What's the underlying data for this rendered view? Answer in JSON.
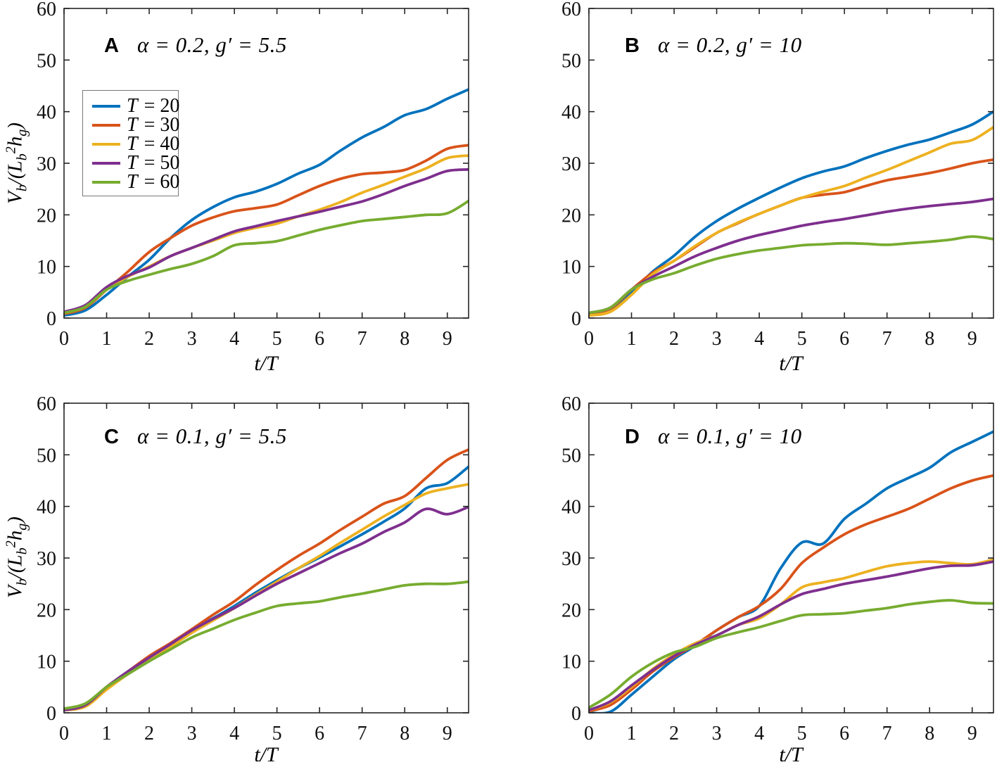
{
  "xlabel": "t/T",
  "ylabel_parts": {
    "v": "V",
    "v_sub": "b",
    "mid": "/(",
    "l": "L",
    "l_sub": "b",
    "l_sup": "2",
    "h": "h",
    "h_sub": "g",
    "close": ")"
  },
  "axis_color": "#262626",
  "chart_data": [
    {
      "type": "line",
      "panel_label": "A",
      "title": "α = 0.2, g′ = 5.5",
      "xlabel": "t/T",
      "ylabel": "V_b/(L_b^2 h_g)",
      "xlim": [
        0,
        9.5
      ],
      "ylim": [
        0,
        60
      ],
      "xticks": [
        0,
        1,
        2,
        3,
        4,
        5,
        6,
        7,
        8,
        9
      ],
      "yticks": [
        0,
        10,
        20,
        30,
        40,
        50,
        60
      ],
      "grid": false,
      "legend": true,
      "legend_position": "upper-left",
      "x": [
        0,
        0.5,
        1,
        1.5,
        2,
        2.5,
        3,
        3.5,
        4,
        4.5,
        5,
        5.5,
        6,
        6.5,
        7,
        7.5,
        8,
        8.5,
        9,
        9.5
      ],
      "series": [
        {
          "name": "T = 20",
          "color": "#0072BD",
          "values": [
            0.5,
            1.5,
            4.5,
            8,
            11.3,
            15.5,
            19,
            21.5,
            23.4,
            24.5,
            26,
            28,
            29.7,
            32.5,
            35,
            37,
            39.3,
            40.5,
            42.5,
            44.3
          ]
        },
        {
          "name": "T = 30",
          "color": "#D95319",
          "values": [
            0.8,
            2,
            5.5,
            9,
            12.8,
            15.5,
            17.9,
            19.5,
            20.7,
            21.3,
            22,
            23.8,
            25.6,
            27,
            27.9,
            28.2,
            28.7,
            30.5,
            32.8,
            33.5
          ]
        },
        {
          "name": "T = 40",
          "color": "#EDB120",
          "values": [
            1,
            2.2,
            5.5,
            8,
            10,
            12,
            13.6,
            15,
            16.5,
            17.5,
            18.3,
            19.7,
            21,
            22.5,
            24.3,
            25.8,
            27.4,
            29,
            31,
            31.5
          ]
        },
        {
          "name": "T = 50",
          "color": "#7E2F8E",
          "values": [
            1.2,
            2.5,
            6,
            8.2,
            9.8,
            12,
            13.6,
            15.2,
            16.8,
            17.8,
            18.8,
            19.7,
            20.6,
            21.6,
            22.6,
            24,
            25.6,
            27,
            28.5,
            28.8
          ]
        },
        {
          "name": "T = 60",
          "color": "#77AC30",
          "values": [
            1,
            2.2,
            5.5,
            7.2,
            8.4,
            9.5,
            10.5,
            12,
            14.1,
            14.5,
            14.9,
            16,
            17.1,
            18,
            18.8,
            19.2,
            19.6,
            20,
            20.3,
            22.7
          ]
        }
      ]
    },
    {
      "type": "line",
      "panel_label": "B",
      "title": "α = 0.2, g′ = 10",
      "xlabel": "t/T",
      "ylabel": "V_b/(L_b^2 h_g)",
      "xlim": [
        0,
        9.5
      ],
      "ylim": [
        0,
        60
      ],
      "xticks": [
        0,
        1,
        2,
        3,
        4,
        5,
        6,
        7,
        8,
        9
      ],
      "yticks": [
        0,
        10,
        20,
        30,
        40,
        50,
        60
      ],
      "grid": false,
      "legend": false,
      "x": [
        0,
        0.5,
        1,
        1.5,
        2,
        2.5,
        3,
        3.5,
        4,
        4.5,
        5,
        5.5,
        6,
        6.5,
        7,
        7.5,
        8,
        8.5,
        9,
        9.5
      ],
      "series": [
        {
          "name": "T = 20",
          "color": "#0072BD",
          "values": [
            1,
            1.8,
            5,
            9,
            12.1,
            15.8,
            18.8,
            21.2,
            23.3,
            25.3,
            27.1,
            28.4,
            29.4,
            31,
            32.4,
            33.6,
            34.6,
            36,
            37.5,
            40
          ]
        },
        {
          "name": "T = 30",
          "color": "#D95319",
          "values": [
            1,
            1.8,
            5.5,
            8.8,
            11.1,
            13.8,
            16.5,
            18.4,
            20.2,
            21.8,
            23.3,
            23.9,
            24.4,
            25.6,
            26.7,
            27.4,
            28.1,
            29,
            30,
            30.7
          ]
        },
        {
          "name": "T = 40",
          "color": "#EDB120",
          "values": [
            0.5,
            1.2,
            4.5,
            8.5,
            11.1,
            14,
            16.5,
            18.5,
            20.2,
            21.8,
            23.3,
            24.5,
            25.6,
            27.2,
            28.7,
            30.4,
            32.1,
            33.8,
            34.5,
            37
          ]
        },
        {
          "name": "T = 50",
          "color": "#7E2F8E",
          "values": [
            1,
            2,
            5.5,
            8,
            10,
            12,
            13.6,
            15,
            16.1,
            17,
            17.9,
            18.6,
            19.2,
            19.9,
            20.6,
            21.2,
            21.7,
            22.1,
            22.5,
            23.1
          ]
        },
        {
          "name": "T = 60",
          "color": "#77AC30",
          "values": [
            1,
            2,
            5.5,
            7.5,
            8.7,
            10.2,
            11.5,
            12.4,
            13.1,
            13.6,
            14.1,
            14.3,
            14.5,
            14.4,
            14.2,
            14.5,
            14.8,
            15.2,
            15.8,
            15.3
          ]
        }
      ]
    },
    {
      "type": "line",
      "panel_label": "C",
      "title": "α = 0.1, g′ = 5.5",
      "xlabel": "t/T",
      "ylabel": "V_b/(L_b^2 h_g)",
      "xlim": [
        0,
        9.5
      ],
      "ylim": [
        0,
        60
      ],
      "xticks": [
        0,
        1,
        2,
        3,
        4,
        5,
        6,
        7,
        8,
        9
      ],
      "yticks": [
        0,
        10,
        20,
        30,
        40,
        50,
        60
      ],
      "grid": false,
      "legend": false,
      "x": [
        0,
        0.5,
        1,
        1.5,
        2,
        2.5,
        3,
        3.5,
        4,
        4.5,
        5,
        5.5,
        6,
        6.5,
        7,
        7.5,
        8,
        8.5,
        9,
        9.5
      ],
      "series": [
        {
          "name": "T = 20",
          "color": "#0072BD",
          "values": [
            0.5,
            1.5,
            5,
            8,
            10.7,
            13.3,
            16,
            18.3,
            20.7,
            23.3,
            25.7,
            28,
            30.1,
            32.3,
            34.6,
            37,
            39.6,
            43.5,
            44.5,
            47.7
          ]
        },
        {
          "name": "T = 30",
          "color": "#D95319",
          "values": [
            0.5,
            1.5,
            5,
            8,
            11,
            13.5,
            16.2,
            19,
            21.6,
            24.8,
            27.7,
            30.4,
            32.8,
            35.5,
            38,
            40.5,
            42,
            45.5,
            49,
            51
          ]
        },
        {
          "name": "T = 40",
          "color": "#EDB120",
          "values": [
            0.5,
            1.2,
            4.5,
            7.5,
            10.2,
            12.8,
            15.5,
            17.9,
            20.3,
            22.9,
            25.4,
            28,
            30.4,
            33,
            35.5,
            38,
            40.3,
            42.5,
            43.5,
            44.3
          ]
        },
        {
          "name": "T = 50",
          "color": "#7E2F8E",
          "values": [
            0.5,
            1.5,
            5,
            8,
            10.7,
            13.3,
            16,
            18.2,
            20.3,
            22.7,
            25,
            27,
            29,
            31,
            32.8,
            35,
            36.9,
            39.5,
            38.5,
            39.9
          ]
        },
        {
          "name": "T = 60",
          "color": "#77AC30",
          "values": [
            0.8,
            1.8,
            5,
            7.5,
            10,
            12.3,
            14.6,
            16.3,
            18,
            19.4,
            20.7,
            21.2,
            21.6,
            22.4,
            23.1,
            23.9,
            24.7,
            25,
            25,
            25.4
          ]
        }
      ]
    },
    {
      "type": "line",
      "panel_label": "D",
      "title": "α = 0.1, g′ = 10",
      "xlabel": "t/T",
      "ylabel": "V_b/(L_b^2 h_g)",
      "xlim": [
        0,
        9.5
      ],
      "ylim": [
        0,
        60
      ],
      "xticks": [
        0,
        1,
        2,
        3,
        4,
        5,
        6,
        7,
        8,
        9
      ],
      "yticks": [
        0,
        10,
        20,
        30,
        40,
        50,
        60
      ],
      "grid": false,
      "legend": false,
      "x": [
        0,
        0.5,
        1,
        1.5,
        2,
        2.5,
        3,
        3.5,
        4,
        4.5,
        5,
        5.5,
        6,
        6.5,
        7,
        7.5,
        8,
        8.5,
        9,
        9.5
      ],
      "series": [
        {
          "name": "T = 20",
          "color": "#0072BD",
          "values": [
            0,
            0.2,
            3.5,
            7,
            10.4,
            13,
            16,
            18.5,
            20.7,
            28,
            33,
            32.8,
            37.6,
            40.5,
            43.5,
            45.5,
            47.5,
            50.5,
            52.5,
            54.5
          ]
        },
        {
          "name": "T = 30",
          "color": "#D95319",
          "values": [
            0.3,
            1.5,
            4.5,
            8,
            10.8,
            13.2,
            16,
            18.5,
            20.7,
            24,
            29,
            32,
            34.6,
            36.5,
            38,
            39.5,
            41.5,
            43.5,
            45,
            46
          ]
        },
        {
          "name": "T = 40",
          "color": "#EDB120",
          "values": [
            0.5,
            2,
            5,
            8.5,
            11.3,
            13.5,
            15,
            17,
            18.3,
            21,
            24.3,
            25.3,
            26.1,
            27.3,
            28.4,
            29,
            29.3,
            29,
            28.8,
            29.7
          ]
        },
        {
          "name": "T = 50",
          "color": "#7E2F8E",
          "values": [
            0.5,
            2.2,
            5.3,
            8.3,
            11,
            13.2,
            15,
            17,
            18.7,
            21,
            23,
            24,
            25,
            25.7,
            26.4,
            27.2,
            28,
            28.5,
            28.6,
            29.3
          ]
        },
        {
          "name": "T = 60",
          "color": "#77AC30",
          "values": [
            1,
            3.5,
            7,
            9.7,
            11.7,
            12.8,
            14.5,
            15.6,
            16.6,
            17.8,
            18.9,
            19.1,
            19.3,
            19.8,
            20.3,
            21,
            21.5,
            21.8,
            21.3,
            21.2
          ]
        }
      ]
    }
  ]
}
